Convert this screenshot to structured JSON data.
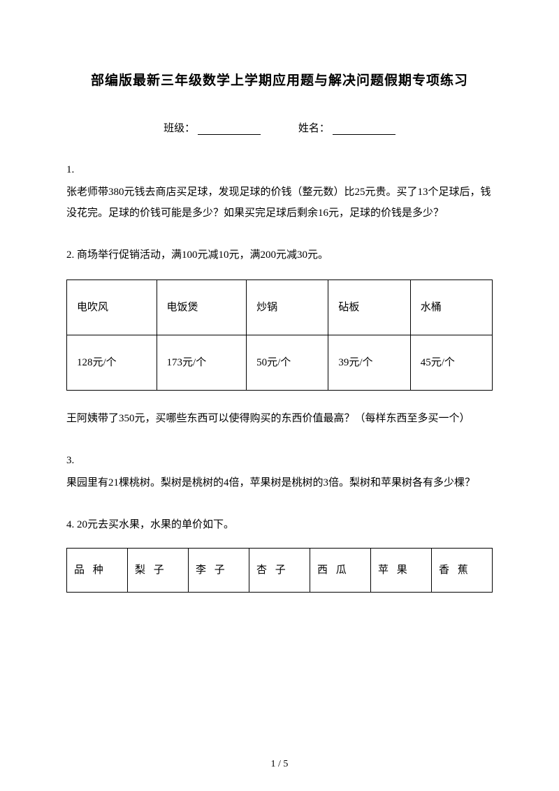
{
  "title": "部编版最新三年级数学上学期应用题与解决问题假期专项练习",
  "info": {
    "class_label": "班级：",
    "name_label": "姓名："
  },
  "q1": {
    "num": "1.",
    "text": "张老师带380元钱去商店买足球，发现足球的价钱（整元数）比25元贵。买了13个足球后，钱没花完。足球的价钱可能是多少？如果买完足球后剩余16元，足球的价钱是多少？"
  },
  "q2": {
    "num_text": "2. 商场举行促销活动，满100元减10元，满200元减30元。",
    "table": {
      "header": [
        "电吹风",
        "电饭煲",
        "炒锅",
        "砧板",
        "水桶"
      ],
      "row": [
        "128元/个",
        "173元/个",
        "50元/个",
        "39元/个",
        "45元/个"
      ]
    },
    "followup": "王阿姨带了350元，买哪些东西可以使得购买的东西价值最高？（每样东西至多买一个）"
  },
  "q3": {
    "num": "3.",
    "text": "果园里有21棵桃树。梨树是桃树的4倍，苹果树是桃树的3倍。梨树和苹果树各有多少棵？"
  },
  "q4": {
    "num_text": "4. 20元去买水果，水果的单价如下。",
    "table": {
      "header": [
        "品 种",
        "梨 子",
        "李 子",
        "杏 子",
        "西 瓜",
        "苹 果",
        "香 蕉"
      ]
    }
  },
  "footer": "1 / 5"
}
